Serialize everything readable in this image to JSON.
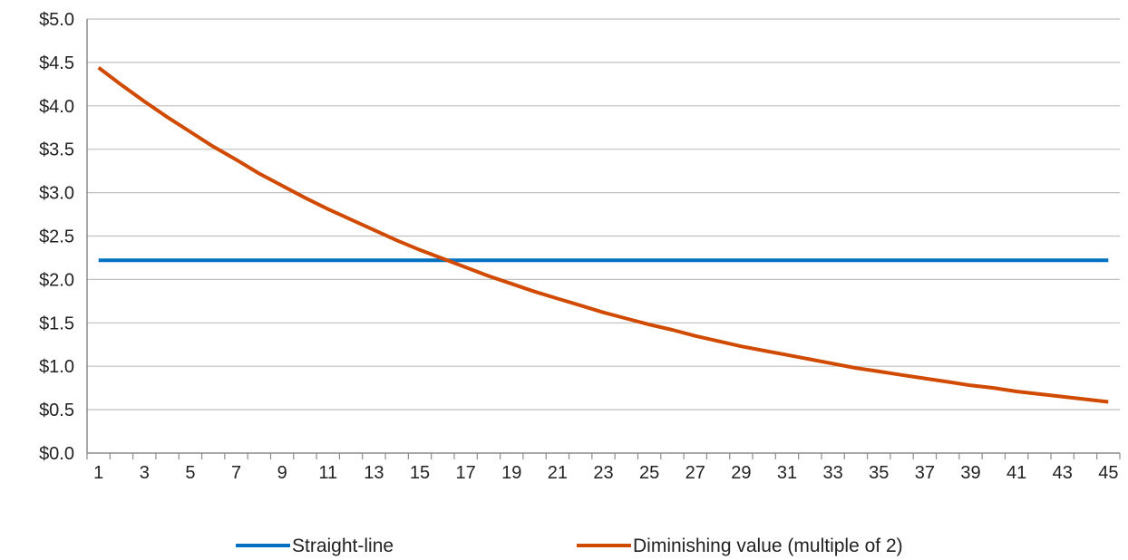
{
  "chart_data": {
    "type": "line",
    "title": "",
    "xlabel": "",
    "ylabel": "",
    "x": [
      1,
      2,
      3,
      4,
      5,
      6,
      7,
      8,
      9,
      10,
      11,
      12,
      13,
      14,
      15,
      16,
      17,
      18,
      19,
      20,
      21,
      22,
      23,
      24,
      25,
      26,
      27,
      28,
      29,
      30,
      31,
      32,
      33,
      34,
      35,
      36,
      37,
      38,
      39,
      40,
      41,
      42,
      43,
      44,
      45
    ],
    "x_tick_labels": [
      "1",
      "3",
      "5",
      "7",
      "9",
      "11",
      "13",
      "15",
      "17",
      "19",
      "21",
      "23",
      "25",
      "27",
      "29",
      "31",
      "33",
      "35",
      "37",
      "39",
      "41",
      "43",
      "45"
    ],
    "ylim": [
      0,
      5
    ],
    "y_ticks": [
      0,
      0.5,
      1.0,
      1.5,
      2.0,
      2.5,
      3.0,
      3.5,
      4.0,
      4.5,
      5.0
    ],
    "y_tick_labels": [
      "$0.0",
      "$0.5",
      "$1.0",
      "$1.5",
      "$2.0",
      "$2.5",
      "$3.0",
      "$3.5",
      "$4.0",
      "$4.5",
      "$5.0"
    ],
    "grid": "horizontal",
    "legend_position": "bottom",
    "series": [
      {
        "name": "Straight-line",
        "color": "#0070C0",
        "values": [
          2.22,
          2.22,
          2.22,
          2.22,
          2.22,
          2.22,
          2.22,
          2.22,
          2.22,
          2.22,
          2.22,
          2.22,
          2.22,
          2.22,
          2.22,
          2.22,
          2.22,
          2.22,
          2.22,
          2.22,
          2.22,
          2.22,
          2.22,
          2.22,
          2.22,
          2.22,
          2.22,
          2.22,
          2.22,
          2.22,
          2.22,
          2.22,
          2.22,
          2.22,
          2.22,
          2.22,
          2.22,
          2.22,
          2.22,
          2.22,
          2.22,
          2.22,
          2.22,
          2.22,
          2.22
        ]
      },
      {
        "name": "Diminishing value (multiple of 2)",
        "color": "#D04A02",
        "values": [
          4.44,
          4.24,
          4.05,
          3.87,
          3.7,
          3.53,
          3.38,
          3.22,
          3.08,
          2.94,
          2.81,
          2.69,
          2.57,
          2.45,
          2.34,
          2.24,
          2.14,
          2.04,
          1.95,
          1.86,
          1.78,
          1.7,
          1.62,
          1.55,
          1.48,
          1.42,
          1.35,
          1.29,
          1.23,
          1.18,
          1.13,
          1.08,
          1.03,
          0.98,
          0.94,
          0.9,
          0.86,
          0.82,
          0.78,
          0.75,
          0.71,
          0.68,
          0.65,
          0.62,
          0.59
        ]
      }
    ]
  }
}
